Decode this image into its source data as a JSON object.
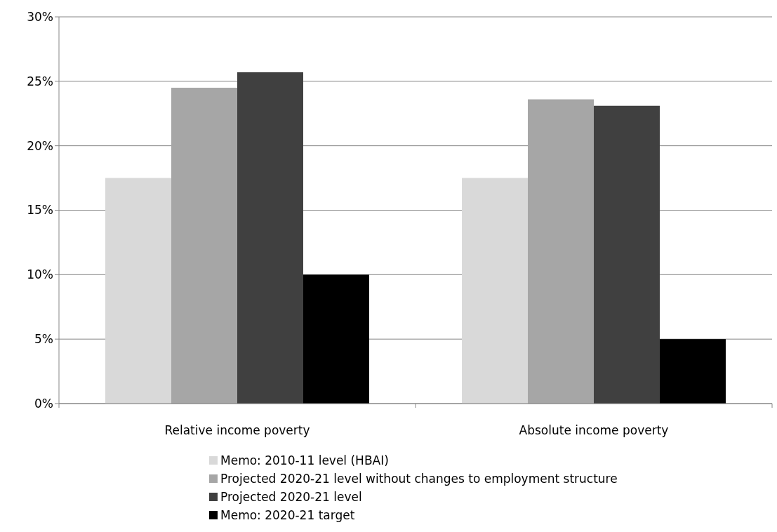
{
  "chart_data": {
    "type": "bar",
    "categories": [
      "Relative income poverty",
      "Absolute income poverty"
    ],
    "series": [
      {
        "name": "Memo: 2010-11 level (HBAI)",
        "color": "#d9d9d9",
        "values": [
          17.5,
          17.5
        ]
      },
      {
        "name": "Projected 2020-21 level without changes to employment structure",
        "color": "#a6a6a6",
        "values": [
          24.5,
          23.6
        ]
      },
      {
        "name": "Projected 2020-21 level",
        "color": "#404040",
        "values": [
          25.7,
          23.1
        ]
      },
      {
        "name": "Memo: 2020-21 target",
        "color": "#000000",
        "values": [
          10,
          5
        ]
      }
    ],
    "ylim": [
      0,
      30
    ],
    "yticks": [
      {
        "value": 0,
        "label": "0%"
      },
      {
        "value": 5,
        "label": "5%"
      },
      {
        "value": 10,
        "label": "10%"
      },
      {
        "value": 15,
        "label": "15%"
      },
      {
        "value": 20,
        "label": "20%"
      },
      {
        "value": 25,
        "label": "25%"
      },
      {
        "value": 30,
        "label": "30%"
      }
    ],
    "grid": "y",
    "legend": "bottom"
  }
}
